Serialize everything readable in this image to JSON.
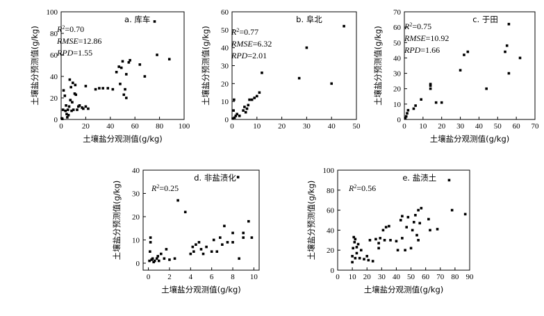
{
  "chart_data": [
    {
      "type": "scatter",
      "title": "a. 库车",
      "xlabel": "土壤盐分观测值(g/kg)",
      "ylabel": "土壤盐分预测值(g/kg)",
      "xlim": [
        0,
        100
      ],
      "ylim": [
        0,
        100
      ],
      "xticks": [
        0,
        20,
        40,
        60,
        80,
        100
      ],
      "yticks": [
        0,
        20,
        40,
        60,
        80,
        100
      ],
      "stats": [
        {
          "name": "R",
          "sup": "2",
          "eq": "=0.70"
        },
        {
          "name": "RMSE",
          "sup": "",
          "eq": "=12.86"
        },
        {
          "name": "RPD",
          "sup": "",
          "eq": "=1.55"
        }
      ],
      "points": [
        [
          0.5,
          1
        ],
        [
          1,
          0.5
        ],
        [
          1.5,
          9
        ],
        [
          2,
          27
        ],
        [
          3,
          22
        ],
        [
          3.5,
          8
        ],
        [
          4,
          13
        ],
        [
          4.5,
          5
        ],
        [
          5,
          2
        ],
        [
          5.5,
          9
        ],
        [
          6,
          4
        ],
        [
          6.5,
          12
        ],
        [
          7,
          37
        ],
        [
          7.5,
          18
        ],
        [
          8,
          30
        ],
        [
          8.5,
          8
        ],
        [
          9,
          16
        ],
        [
          9.5,
          34
        ],
        [
          10,
          9
        ],
        [
          11,
          24
        ],
        [
          11.5,
          32
        ],
        [
          12,
          23
        ],
        [
          13,
          9
        ],
        [
          14,
          12
        ],
        [
          15,
          13
        ],
        [
          17,
          11
        ],
        [
          18,
          10
        ],
        [
          20,
          12
        ],
        [
          20,
          31
        ],
        [
          22,
          10
        ],
        [
          28,
          28
        ],
        [
          31,
          29
        ],
        [
          34,
          29
        ],
        [
          38,
          29
        ],
        [
          42,
          28
        ],
        [
          45,
          44
        ],
        [
          47,
          49
        ],
        [
          48,
          33
        ],
        [
          49,
          48
        ],
        [
          50,
          54
        ],
        [
          51,
          23
        ],
        [
          52,
          28
        ],
        [
          53,
          20
        ],
        [
          53,
          42
        ],
        [
          55,
          53
        ],
        [
          56,
          55
        ],
        [
          64,
          51
        ],
        [
          68,
          40
        ],
        [
          76,
          91
        ],
        [
          78,
          60
        ],
        [
          88,
          56
        ]
      ]
    },
    {
      "type": "scatter",
      "title": "b. 阜北",
      "xlabel": "",
      "ylabel": "土壤盐分预测值(g/kg)",
      "xlim": [
        0,
        50
      ],
      "ylim": [
        0,
        60
      ],
      "xticks": [
        0,
        10,
        20,
        30,
        40,
        50
      ],
      "yticks": [
        0,
        10,
        20,
        30,
        40,
        50,
        60
      ],
      "stats": [
        {
          "name": "R",
          "sup": "2",
          "eq": "=0.77"
        },
        {
          "name": "RMSE",
          "sup": "",
          "eq": "=6.32"
        },
        {
          "name": "RPD",
          "sup": "",
          "eq": "=2.01"
        }
      ],
      "points": [
        [
          0.3,
          0.5
        ],
        [
          0.6,
          5
        ],
        [
          0.8,
          11
        ],
        [
          1,
          1
        ],
        [
          1.5,
          2
        ],
        [
          2,
          3
        ],
        [
          3,
          2
        ],
        [
          4.5,
          5
        ],
        [
          5,
          7
        ],
        [
          5.5,
          4
        ],
        [
          6,
          6
        ],
        [
          6.5,
          8
        ],
        [
          7,
          11
        ],
        [
          8,
          11
        ],
        [
          9,
          12
        ],
        [
          10,
          13
        ],
        [
          11,
          15
        ],
        [
          12,
          26
        ],
        [
          27,
          23
        ],
        [
          30,
          40
        ],
        [
          40,
          20
        ],
        [
          45,
          52
        ]
      ]
    },
    {
      "type": "scatter",
      "title": "c. 于田",
      "xlabel": "土壤盐分观测值(g/kg)",
      "ylabel": "土壤盐分预测值(g/kg)",
      "xlim": [
        0,
        70
      ],
      "ylim": [
        0,
        70
      ],
      "xticks": [
        0,
        10,
        20,
        30,
        40,
        50,
        60,
        70
      ],
      "yticks": [
        0,
        10,
        20,
        30,
        40,
        50,
        60,
        70
      ],
      "stats": [
        {
          "name": "R",
          "sup": "2",
          "eq": "=0.75"
        },
        {
          "name": "RMSE",
          "sup": "",
          "eq": "=10.92"
        },
        {
          "name": "RPD",
          "sup": "",
          "eq": "=1.66"
        }
      ],
      "points": [
        [
          0.5,
          1
        ],
        [
          1,
          2
        ],
        [
          1.5,
          4
        ],
        [
          2,
          6
        ],
        [
          5,
          7
        ],
        [
          6,
          9
        ],
        [
          9,
          13
        ],
        [
          14,
          20
        ],
        [
          14,
          22
        ],
        [
          14,
          23
        ],
        [
          17,
          11
        ],
        [
          20,
          11
        ],
        [
          30,
          32
        ],
        [
          32,
          42
        ],
        [
          34,
          44
        ],
        [
          44,
          20
        ],
        [
          54,
          44
        ],
        [
          55,
          48
        ],
        [
          56,
          62
        ],
        [
          56,
          30
        ],
        [
          62,
          40
        ]
      ]
    },
    {
      "type": "scatter",
      "title": "d. 非盐渍化",
      "xlabel": "土壤盐分观测值(g/kg)",
      "ylabel": "土壤盐分预测值(g/kg)",
      "xlim": [
        -0.5,
        10.5
      ],
      "ylim": [
        -3,
        40
      ],
      "xticks": [
        0,
        2,
        4,
        6,
        8,
        10
      ],
      "yticks": [
        0,
        10,
        20,
        30,
        40
      ],
      "stats": [
        {
          "name": "R",
          "sup": "2",
          "eq": "=0.25"
        }
      ],
      "points": [
        [
          0.1,
          1
        ],
        [
          0.15,
          5
        ],
        [
          0.2,
          9
        ],
        [
          0.2,
          11
        ],
        [
          0.3,
          1.5
        ],
        [
          0.4,
          2
        ],
        [
          0.5,
          0.5
        ],
        [
          0.6,
          1
        ],
        [
          0.8,
          2
        ],
        [
          0.9,
          3
        ],
        [
          1,
          1
        ],
        [
          1.2,
          4
        ],
        [
          1.5,
          2
        ],
        [
          1.7,
          6
        ],
        [
          2,
          1.5
        ],
        [
          2.5,
          2
        ],
        [
          2.8,
          27
        ],
        [
          3.5,
          22
        ],
        [
          4,
          4
        ],
        [
          4.2,
          7
        ],
        [
          4.3,
          5
        ],
        [
          4.5,
          8
        ],
        [
          4.8,
          9
        ],
        [
          5,
          6
        ],
        [
          5.2,
          4
        ],
        [
          5.5,
          7
        ],
        [
          6,
          5
        ],
        [
          6.2,
          10
        ],
        [
          6.5,
          5
        ],
        [
          6.8,
          11
        ],
        [
          7,
          8
        ],
        [
          7.2,
          16
        ],
        [
          7.5,
          9
        ],
        [
          8,
          13
        ],
        [
          8,
          9
        ],
        [
          8.5,
          37
        ],
        [
          8.6,
          2
        ],
        [
          9,
          11
        ],
        [
          9,
          13
        ],
        [
          9.5,
          18
        ],
        [
          9.8,
          11
        ]
      ]
    },
    {
      "type": "scatter",
      "title": "e. 盐渍土",
      "xlabel": "土壤盐分观测值(g/kg)",
      "ylabel": "土壤盐分预测值(g/kg)",
      "xlim": [
        0,
        90
      ],
      "ylim": [
        0,
        100
      ],
      "xticks": [
        0,
        10,
        20,
        30,
        40,
        50,
        60,
        70,
        80,
        90
      ],
      "yticks": [
        0,
        20,
        40,
        60,
        80,
        100
      ],
      "stats": [
        {
          "name": "R",
          "sup": "2",
          "eq": "=0.56"
        }
      ],
      "points": [
        [
          10,
          8
        ],
        [
          10,
          14
        ],
        [
          10.5,
          22
        ],
        [
          11,
          33
        ],
        [
          11.5,
          28
        ],
        [
          12,
          12
        ],
        [
          12,
          31
        ],
        [
          13,
          23
        ],
        [
          13,
          17
        ],
        [
          14,
          26
        ],
        [
          15,
          12
        ],
        [
          16,
          20
        ],
        [
          18,
          11
        ],
        [
          20,
          14
        ],
        [
          21,
          10
        ],
        [
          22,
          30
        ],
        [
          24,
          9
        ],
        [
          26,
          31
        ],
        [
          28,
          22
        ],
        [
          28,
          27
        ],
        [
          29,
          32
        ],
        [
          31,
          40
        ],
        [
          32,
          30
        ],
        [
          33,
          43
        ],
        [
          35,
          44
        ],
        [
          36,
          30
        ],
        [
          40,
          29
        ],
        [
          41,
          20
        ],
        [
          43,
          50
        ],
        [
          44,
          54
        ],
        [
          44,
          32
        ],
        [
          46,
          20
        ],
        [
          47,
          43
        ],
        [
          48,
          53
        ],
        [
          50,
          22
        ],
        [
          51,
          40
        ],
        [
          52,
          48
        ],
        [
          53,
          55
        ],
        [
          54,
          35
        ],
        [
          55,
          60
        ],
        [
          55,
          30
        ],
        [
          56,
          47
        ],
        [
          57,
          62
        ],
        [
          62,
          51
        ],
        [
          63,
          40
        ],
        [
          68,
          41
        ],
        [
          76,
          90
        ],
        [
          78,
          60
        ],
        [
          87,
          56
        ]
      ]
    }
  ]
}
